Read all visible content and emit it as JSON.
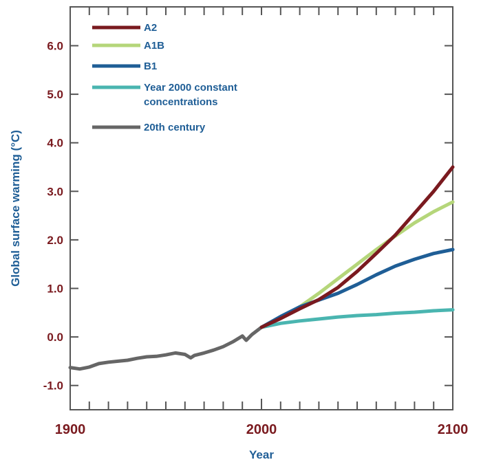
{
  "chart_data": {
    "type": "line",
    "xlabel": "Year",
    "ylabel": "Global surface warming (°C)",
    "xlim": [
      1900,
      2100
    ],
    "ylim": [
      -1.5,
      6.8
    ],
    "grid": false,
    "legend_position": "top-left",
    "x_ticks": [
      {
        "value": 1900,
        "label": "1900"
      },
      {
        "value": 2000,
        "label": "2000"
      },
      {
        "value": 2100,
        "label": "2100"
      }
    ],
    "y_ticks": [
      {
        "value": 6.0,
        "label": "6.0"
      },
      {
        "value": 5.0,
        "label": "5.0"
      },
      {
        "value": 4.0,
        "label": "4.0"
      },
      {
        "value": 3.0,
        "label": "3.0"
      },
      {
        "value": 2.0,
        "label": "2.0"
      },
      {
        "value": 1.0,
        "label": "1.0"
      },
      {
        "value": 0.0,
        "label": "0.0"
      },
      {
        "value": -1.0,
        "label": "-1.0"
      }
    ],
    "series": [
      {
        "name": "A2",
        "color": "#7a1a1f",
        "x": [
          2000,
          2010,
          2020,
          2030,
          2040,
          2050,
          2060,
          2070,
          2080,
          2090,
          2100
        ],
        "y": [
          0.2,
          0.38,
          0.58,
          0.77,
          1.02,
          1.35,
          1.72,
          2.1,
          2.55,
          3.0,
          3.5
        ]
      },
      {
        "name": "A1B",
        "color": "#b5d67a",
        "x": [
          2000,
          2010,
          2020,
          2030,
          2040,
          2050,
          2060,
          2070,
          2080,
          2090,
          2100
        ],
        "y": [
          0.2,
          0.4,
          0.62,
          0.9,
          1.2,
          1.5,
          1.8,
          2.08,
          2.35,
          2.58,
          2.78
        ]
      },
      {
        "name": "B1",
        "color": "#1f5e96",
        "x": [
          2000,
          2010,
          2020,
          2030,
          2040,
          2050,
          2060,
          2070,
          2080,
          2090,
          2100
        ],
        "y": [
          0.2,
          0.42,
          0.62,
          0.76,
          0.9,
          1.08,
          1.28,
          1.46,
          1.6,
          1.72,
          1.8
        ]
      },
      {
        "name": "Year 2000 constant concentrations",
        "color": "#4ab5b0",
        "x": [
          2000,
          2010,
          2020,
          2030,
          2040,
          2050,
          2060,
          2070,
          2080,
          2090,
          2100
        ],
        "y": [
          0.2,
          0.28,
          0.33,
          0.37,
          0.41,
          0.44,
          0.46,
          0.49,
          0.51,
          0.54,
          0.56
        ]
      },
      {
        "name": "20th century",
        "color": "#666666",
        "x": [
          1900,
          1905,
          1910,
          1915,
          1920,
          1925,
          1930,
          1935,
          1940,
          1945,
          1950,
          1955,
          1960,
          1963,
          1965,
          1970,
          1975,
          1980,
          1985,
          1990,
          1992,
          1995,
          2000
        ],
        "y": [
          -0.63,
          -0.66,
          -0.62,
          -0.55,
          -0.52,
          -0.5,
          -0.48,
          -0.44,
          -0.41,
          -0.4,
          -0.37,
          -0.33,
          -0.36,
          -0.43,
          -0.38,
          -0.33,
          -0.27,
          -0.2,
          -0.1,
          0.02,
          -0.07,
          0.05,
          0.2
        ]
      }
    ]
  }
}
